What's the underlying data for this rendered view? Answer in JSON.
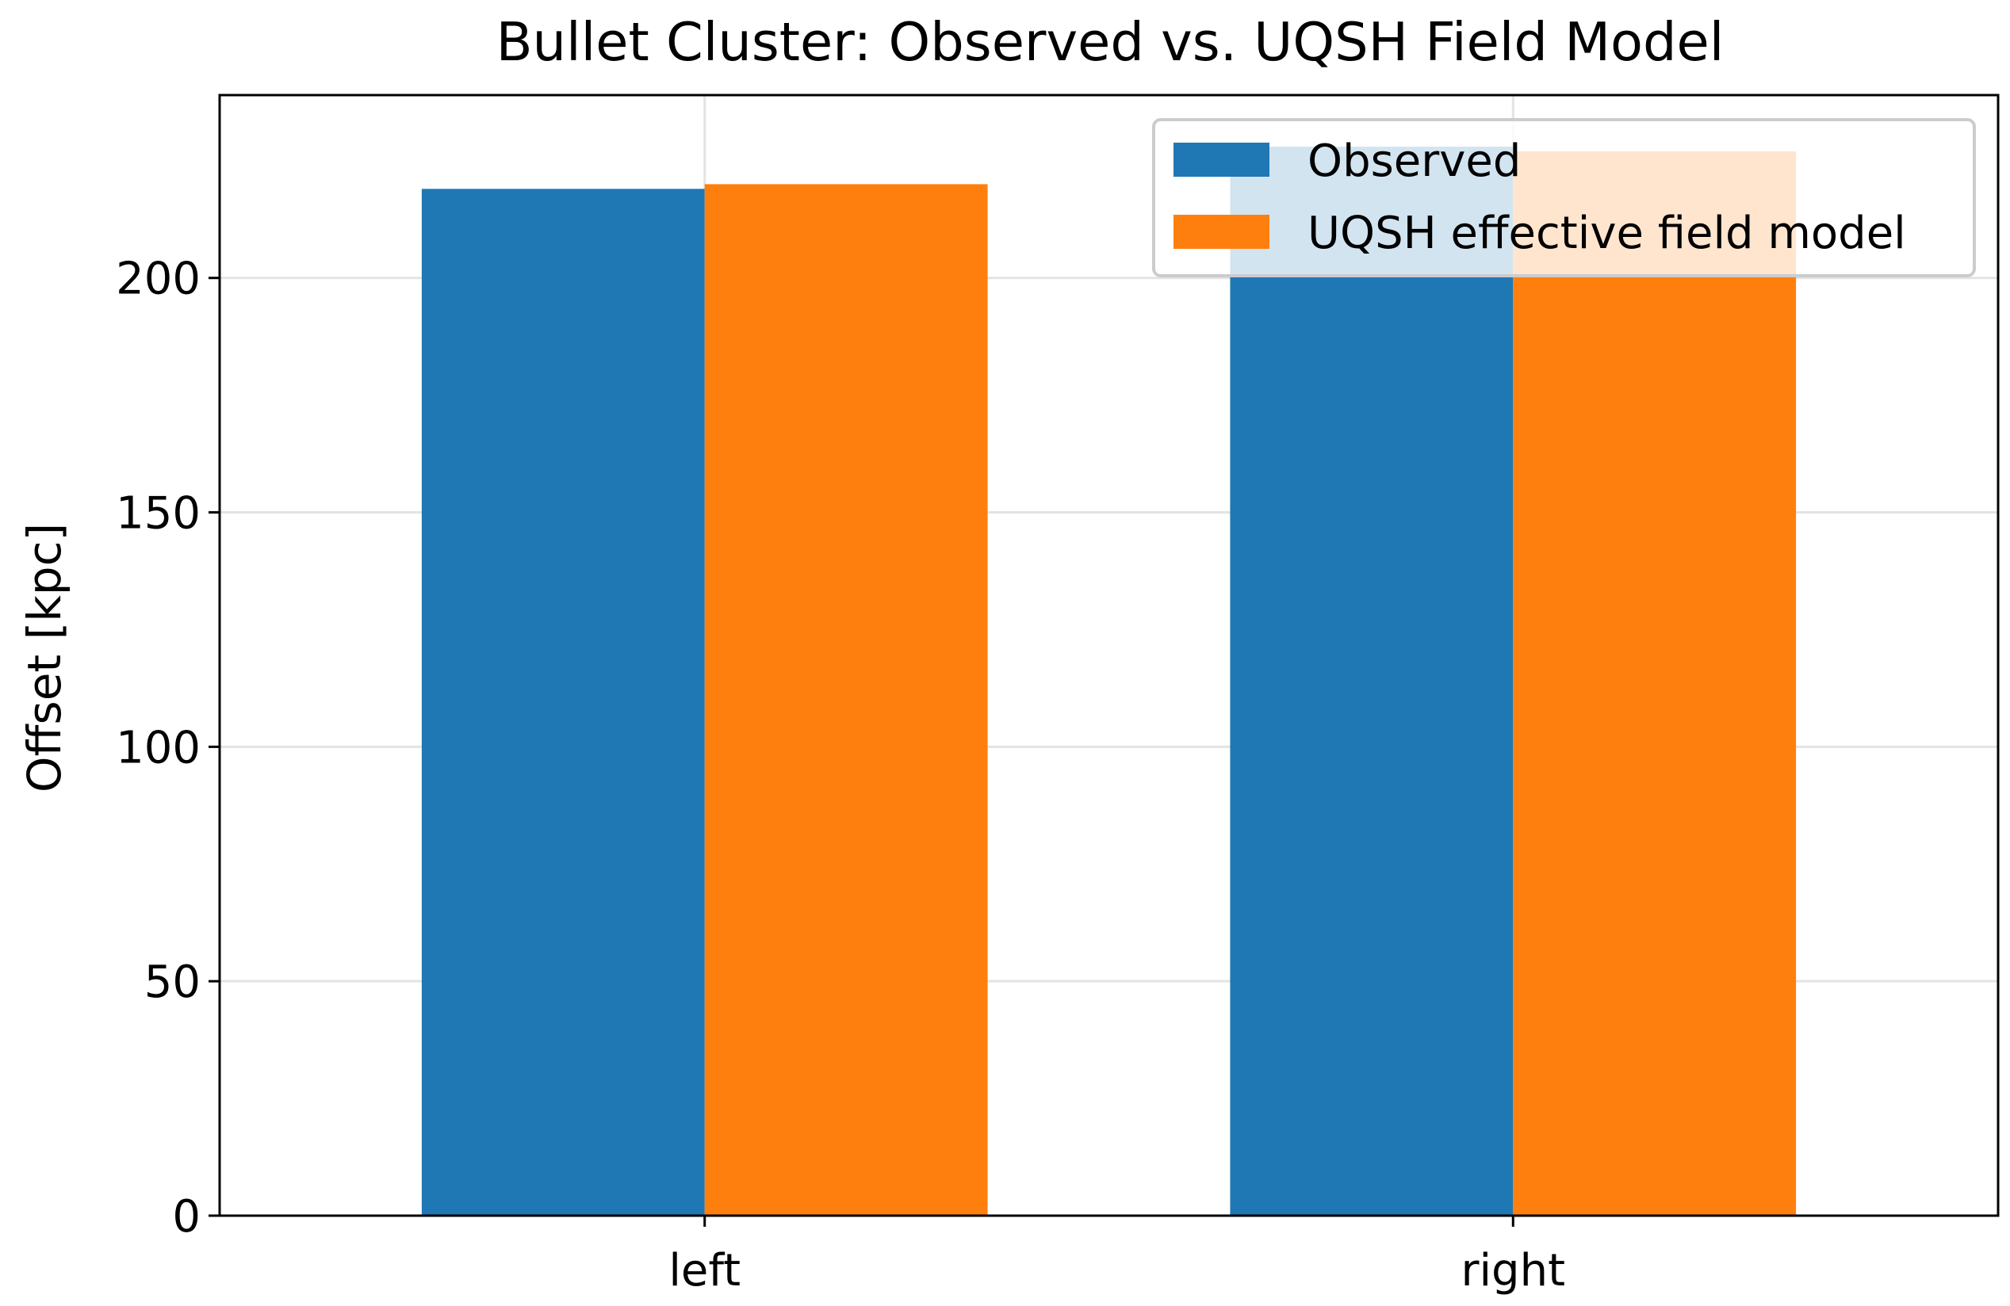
{
  "chart_data": {
    "type": "bar",
    "title": "Bullet Cluster: Observed vs. UQSH Field Model",
    "xlabel": "",
    "ylabel": "Offset [kpc]",
    "categories": [
      "left",
      "right"
    ],
    "series": [
      {
        "name": "Observed",
        "values": [
          219,
          228
        ],
        "color": "#1f77b4"
      },
      {
        "name": "UQSH effective field model",
        "values": [
          220,
          227
        ],
        "color": "#ff7f0e"
      }
    ],
    "ylim": [
      0,
      239
    ],
    "yticks": [
      0,
      50,
      100,
      150,
      200
    ],
    "grid": true,
    "legend_position": "upper-right"
  }
}
